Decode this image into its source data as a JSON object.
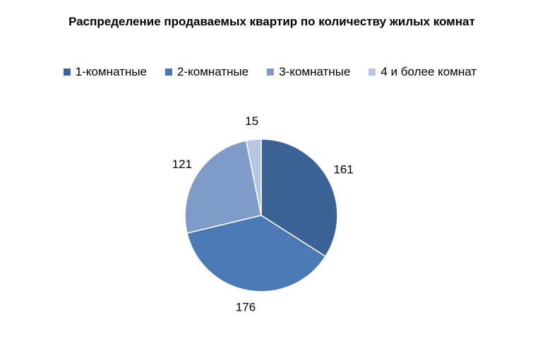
{
  "chart_data": {
    "type": "pie",
    "title": "Распределение продаваемых квартир по количеству жилых комнат",
    "categories": [
      "1-комнатные",
      "2-комнатные",
      "3-комнатные",
      "4 и более комнат"
    ],
    "values": [
      161,
      176,
      121,
      15
    ],
    "colors": [
      "#3b6395",
      "#4a79b5",
      "#7f9bc8",
      "#b5c7e2"
    ]
  }
}
